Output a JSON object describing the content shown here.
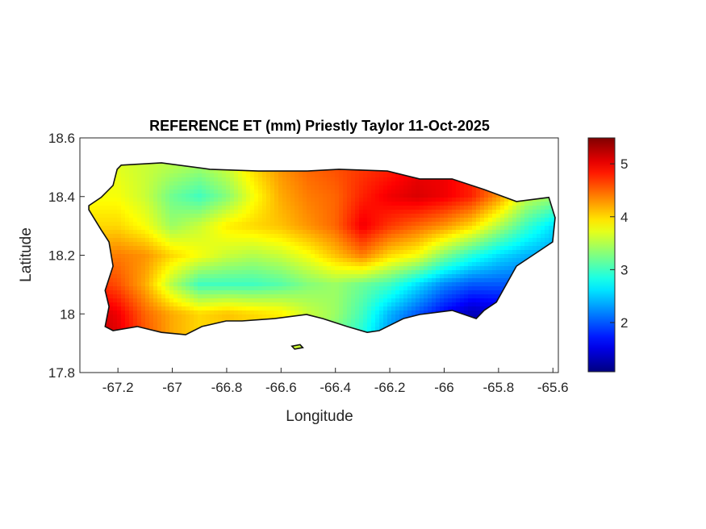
{
  "chart_data": {
    "type": "heatmap",
    "title": "REFERENCE ET (mm) Priestly Taylor 11-Oct-2025",
    "xlabel": "Longitude",
    "ylabel": "Latitude",
    "xlim": [
      -67.34,
      -65.58
    ],
    "ylim": [
      17.8,
      18.6
    ],
    "xticks": [
      -67.2,
      -67,
      -66.8,
      -66.6,
      -66.4,
      -66.2,
      -66,
      -65.8,
      -65.6
    ],
    "xtick_labels": [
      "-67.2",
      "-67",
      "-66.8",
      "-66.6",
      "-66.4",
      "-66.2",
      "-66",
      "-65.8",
      "-65.6"
    ],
    "yticks": [
      17.8,
      18,
      18.2,
      18.4,
      18.6
    ],
    "ytick_labels": [
      "17.8",
      "18",
      "18.2",
      "18.4",
      "18.6"
    ],
    "colorbar": {
      "colormap": "jet",
      "range": [
        1.07,
        5.49
      ],
      "ticks": [
        2,
        3,
        4,
        5
      ],
      "tick_labels": [
        "2",
        "3",
        "4",
        "5"
      ]
    },
    "grid": {
      "lons": [
        -67.3,
        -67.2,
        -67.1,
        -67.0,
        -66.9,
        -66.8,
        -66.7,
        -66.6,
        -66.5,
        -66.4,
        -66.3,
        -66.2,
        -66.1,
        -66.0,
        -65.9,
        -65.8,
        -65.7,
        -65.6
      ],
      "lats": [
        18.5,
        18.4,
        18.3,
        18.2,
        18.1,
        18.0,
        17.9
      ],
      "values": [
        [
          3.8,
          3.7,
          3.6,
          3.5,
          3.4,
          3.6,
          4.0,
          4.3,
          4.5,
          4.6,
          4.7,
          4.8,
          5.0,
          5.0,
          4.8,
          4.5,
          4.0,
          3.8
        ],
        [
          3.8,
          3.8,
          3.6,
          3.2,
          3.0,
          3.3,
          3.8,
          4.2,
          4.4,
          4.5,
          4.8,
          5.0,
          5.1,
          5.0,
          4.8,
          4.3,
          3.6,
          3.4
        ],
        [
          4.0,
          4.0,
          3.8,
          3.4,
          3.6,
          3.9,
          4.0,
          4.1,
          4.3,
          4.5,
          5.0,
          4.7,
          4.5,
          4.3,
          4.0,
          3.5,
          3.0,
          2.6
        ],
        [
          4.3,
          4.4,
          4.3,
          4.0,
          3.8,
          3.6,
          3.5,
          3.6,
          3.8,
          4.1,
          4.4,
          4.0,
          3.8,
          3.3,
          2.9,
          2.6,
          2.4,
          2.3
        ],
        [
          4.8,
          4.6,
          4.2,
          3.5,
          3.0,
          3.0,
          3.0,
          3.1,
          3.3,
          3.4,
          3.2,
          3.0,
          2.6,
          2.2,
          2.0,
          2.0,
          2.0,
          2.0
        ],
        [
          5.2,
          5.0,
          4.5,
          4.2,
          4.0,
          4.1,
          4.0,
          3.9,
          3.6,
          3.4,
          3.0,
          2.4,
          2.0,
          1.6,
          1.3,
          1.4,
          1.6,
          1.6
        ],
        [
          5.2,
          5.1,
          4.6,
          4.2,
          4.0,
          4.0,
          4.0,
          3.8,
          3.5,
          3.2,
          2.8,
          2.2,
          1.8,
          1.4,
          1.2,
          1.2,
          1.4,
          1.4
        ]
      ]
    },
    "outline": [
      [
        -67.307,
        18.369
      ],
      [
        -67.262,
        18.397
      ],
      [
        -67.218,
        18.438
      ],
      [
        -67.203,
        18.493
      ],
      [
        -67.188,
        18.507
      ],
      [
        -67.04,
        18.515
      ],
      [
        -66.862,
        18.493
      ],
      [
        -66.684,
        18.487
      ],
      [
        -66.506,
        18.487
      ],
      [
        -66.387,
        18.493
      ],
      [
        -66.209,
        18.487
      ],
      [
        -66.09,
        18.46
      ],
      [
        -65.971,
        18.46
      ],
      [
        -65.853,
        18.424
      ],
      [
        -65.734,
        18.383
      ],
      [
        -65.615,
        18.397
      ],
      [
        -65.592,
        18.328
      ],
      [
        -65.601,
        18.245
      ],
      [
        -65.645,
        18.218
      ],
      [
        -65.734,
        18.163
      ],
      [
        -65.808,
        18.04
      ],
      [
        -65.853,
        18.012
      ],
      [
        -65.882,
        17.984
      ],
      [
        -65.971,
        18.012
      ],
      [
        -66.09,
        17.998
      ],
      [
        -66.15,
        17.984
      ],
      [
        -66.239,
        17.943
      ],
      [
        -66.283,
        17.937
      ],
      [
        -66.357,
        17.957
      ],
      [
        -66.446,
        17.984
      ],
      [
        -66.506,
        17.998
      ],
      [
        -66.624,
        17.984
      ],
      [
        -66.743,
        17.976
      ],
      [
        -66.802,
        17.976
      ],
      [
        -66.891,
        17.957
      ],
      [
        -66.951,
        17.929
      ],
      [
        -67.04,
        17.937
      ],
      [
        -67.129,
        17.957
      ],
      [
        -67.218,
        17.943
      ],
      [
        -67.247,
        17.957
      ],
      [
        -67.233,
        18.025
      ],
      [
        -67.247,
        18.08
      ],
      [
        -67.218,
        18.163
      ],
      [
        -67.233,
        18.245
      ],
      [
        -67.262,
        18.287
      ],
      [
        -67.307,
        18.355
      ]
    ],
    "islands": [
      [
        [
          -66.56,
          17.89
        ],
        [
          -66.53,
          17.895
        ],
        [
          -66.52,
          17.885
        ],
        [
          -66.55,
          17.88
        ]
      ]
    ]
  }
}
